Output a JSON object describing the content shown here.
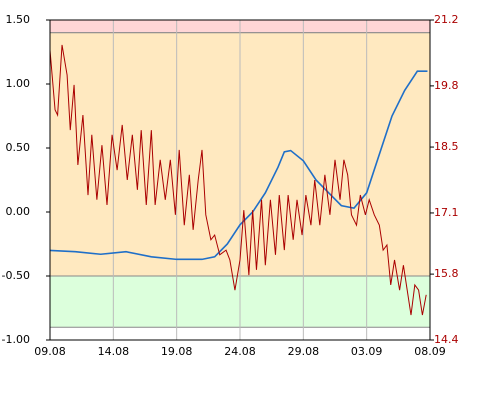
{
  "chart_data": {
    "type": "line",
    "xlim": [
      0,
      30
    ],
    "xticks": [
      {
        "value": 0,
        "label": "09.08"
      },
      {
        "value": 5,
        "label": "14.08"
      },
      {
        "value": 10,
        "label": "19.08"
      },
      {
        "value": 15,
        "label": "24.08"
      },
      {
        "value": 20,
        "label": "29.08"
      },
      {
        "value": 25,
        "label": "03.09"
      },
      {
        "value": 30,
        "label": "08.09"
      }
    ],
    "ylim": [
      -1.0,
      1.5
    ],
    "yticks": [
      {
        "value": 1.5,
        "label": "1.50"
      },
      {
        "value": 1.0,
        "label": "1.00"
      },
      {
        "value": 0.5,
        "label": "0.50"
      },
      {
        "value": 0.0,
        "label": "0.00"
      },
      {
        "value": -0.5,
        "label": "-0.50"
      },
      {
        "value": -1.0,
        "label": "-1.00"
      }
    ],
    "y2lim": [
      14.4,
      21.2
    ],
    "y2ticks": [
      21.2,
      19.8,
      18.5,
      17.1,
      15.8,
      14.4
    ],
    "y2_color": "#aa0000",
    "grid": true,
    "bands": [
      {
        "from": 1.4,
        "to": 1.5,
        "color": "#ffd6d6"
      },
      {
        "from": -0.5,
        "to": 1.4,
        "color": "#ffe9c0"
      },
      {
        "from": -0.9,
        "to": -0.5,
        "color": "#dcffdc"
      }
    ],
    "series": [
      {
        "color": "#1f6fc8",
        "axis": "y",
        "x": [
          0,
          2,
          4,
          6,
          8,
          10,
          12,
          13,
          14,
          15,
          16,
          17,
          18,
          18.5,
          19,
          20,
          21,
          22,
          23,
          24,
          25,
          26,
          27,
          28,
          29,
          29.8
        ],
        "values": [
          -0.3,
          -0.31,
          -0.33,
          -0.31,
          -0.35,
          -0.37,
          -0.37,
          -0.35,
          -0.25,
          -0.1,
          0.0,
          0.15,
          0.35,
          0.47,
          0.48,
          0.4,
          0.25,
          0.15,
          0.05,
          0.03,
          0.15,
          0.45,
          0.75,
          0.95,
          1.1,
          1.1
        ]
      },
      {
        "color": "#aa0000",
        "axis": "y2",
        "x": [
          0,
          0.4,
          0.6,
          0.95,
          1.35,
          1.6,
          1.9,
          2.2,
          2.6,
          3,
          3.3,
          3.7,
          4.1,
          4.5,
          4.9,
          5.3,
          5.7,
          6.1,
          6.5,
          6.9,
          7.2,
          7.6,
          8,
          8.3,
          8.7,
          9.1,
          9.5,
          9.9,
          10.2,
          10.6,
          11,
          11.3,
          11.7,
          12,
          12.3,
          12.7,
          13,
          13.4,
          13.9,
          14.2,
          14.6,
          15,
          15.3,
          15.7,
          16,
          16.3,
          16.7,
          17,
          17.4,
          17.8,
          18.1,
          18.5,
          18.8,
          19.2,
          19.5,
          19.9,
          20.2,
          20.6,
          20.9,
          21.3,
          21.7,
          22.1,
          22.5,
          22.9,
          23.2,
          23.5,
          23.8,
          24.2,
          24.5,
          24.9,
          25.2,
          25.6,
          26,
          26.3,
          26.6,
          26.9,
          27.2,
          27.6,
          27.9,
          28.2,
          28.5,
          28.8,
          29.1,
          29.4,
          29.7
        ],
        "values": [
          20.56,
          19.29,
          19.18,
          20.67,
          20.03,
          18.86,
          19.82,
          18.12,
          19.18,
          17.48,
          18.76,
          17.38,
          18.54,
          17.27,
          18.76,
          18.01,
          18.97,
          17.8,
          18.76,
          17.59,
          18.86,
          17.27,
          18.86,
          17.27,
          18.23,
          17.38,
          18.23,
          17.06,
          18.44,
          16.84,
          17.91,
          16.74,
          17.8,
          18.44,
          17.06,
          16.53,
          16.63,
          16.21,
          16.31,
          16.1,
          15.46,
          16.1,
          17.16,
          15.78,
          17.16,
          15.89,
          17.38,
          15.99,
          17.38,
          16.21,
          17.48,
          16.31,
          17.48,
          16.53,
          17.38,
          16.63,
          17.48,
          16.84,
          17.8,
          16.84,
          17.91,
          17.06,
          18.23,
          17.38,
          18.23,
          17.91,
          17.06,
          16.84,
          17.48,
          17.06,
          17.38,
          17.06,
          16.84,
          16.31,
          16.42,
          15.57,
          16.1,
          15.46,
          15.99,
          15.46,
          14.93,
          15.57,
          15.46,
          14.93,
          15.36
        ]
      }
    ]
  }
}
